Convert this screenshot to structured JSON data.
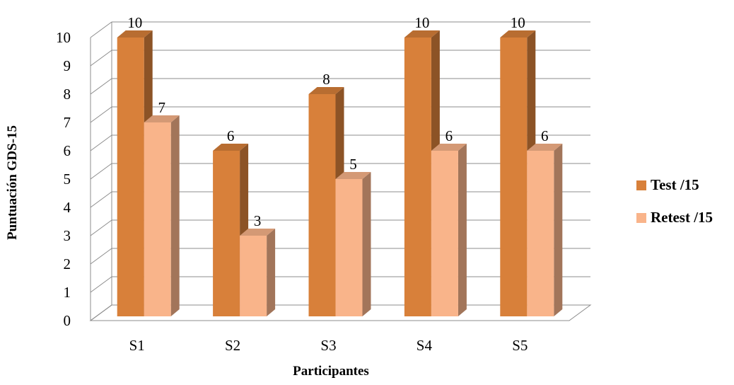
{
  "chart_data": {
    "type": "bar",
    "title": "",
    "xlabel": "Participantes",
    "ylabel": "Puntuación GDS-15",
    "categories": [
      "S1",
      "S2",
      "S3",
      "S4",
      "S5"
    ],
    "series": [
      {
        "name": "Test /15",
        "values": [
          10,
          6,
          8,
          10,
          10
        ],
        "color": "#D8803A"
      },
      {
        "name": "Retest /15",
        "values": [
          7,
          3,
          5,
          6,
          6
        ],
        "color": "#F9B48A"
      }
    ],
    "ylim": [
      0,
      10
    ],
    "yticks": [
      "0",
      "1",
      "2",
      "3",
      "4",
      "5",
      "6",
      "7",
      "8",
      "9",
      "10"
    ],
    "grid": true,
    "three_d": true,
    "data_labels": true,
    "legend_position": "right"
  }
}
